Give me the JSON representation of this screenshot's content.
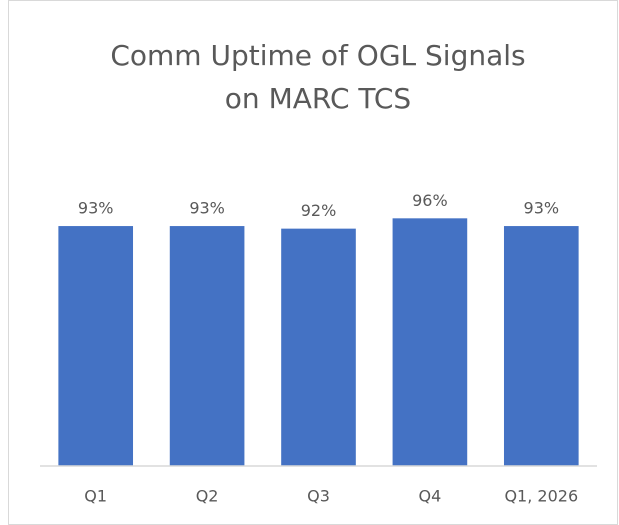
{
  "chart_data": {
    "type": "bar",
    "title": [
      "Comm Uptime of OGL Signals",
      "on MARC TCS"
    ],
    "categories": [
      "Q1",
      "Q2",
      "Q3",
      "Q4",
      "Q1, 2026"
    ],
    "values": [
      93,
      93,
      92,
      96,
      93
    ],
    "value_labels": [
      "93%",
      "93%",
      "92%",
      "96%",
      "93%"
    ],
    "color": "#4472c4",
    "ylim": [
      0,
      100
    ]
  }
}
